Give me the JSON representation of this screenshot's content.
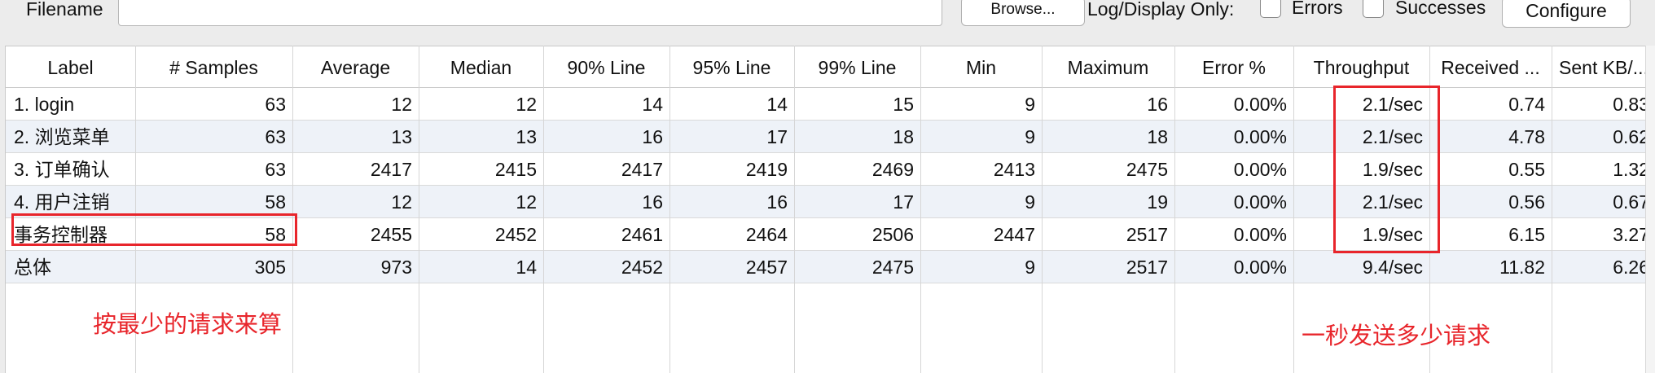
{
  "toolbar": {
    "filename_label": "Filename",
    "filename_value": "",
    "browse_label": "Browse...",
    "log_display_label": "Log/Display Only:",
    "errors_label": "Errors",
    "successes_label": "Successes",
    "configure_label": "Configure"
  },
  "table": {
    "columns": [
      "Label",
      "# Samples",
      "Average",
      "Median",
      "90% Line",
      "95% Line",
      "99% Line",
      "Min",
      "Maximum",
      "Error %",
      "Throughput",
      "Received ...",
      "Sent KB/..."
    ],
    "rows": [
      [
        "1. login",
        "63",
        "12",
        "12",
        "14",
        "14",
        "15",
        "9",
        "16",
        "0.00%",
        "2.1/sec",
        "0.74",
        "0.83"
      ],
      [
        "2. 浏览菜单",
        "63",
        "13",
        "13",
        "16",
        "17",
        "18",
        "9",
        "18",
        "0.00%",
        "2.1/sec",
        "4.78",
        "0.62"
      ],
      [
        "3. 订单确认",
        "63",
        "2417",
        "2415",
        "2417",
        "2419",
        "2469",
        "2413",
        "2475",
        "0.00%",
        "1.9/sec",
        "0.55",
        "1.32"
      ],
      [
        "4. 用户注销",
        "58",
        "12",
        "12",
        "16",
        "16",
        "17",
        "9",
        "19",
        "0.00%",
        "2.1/sec",
        "0.56",
        "0.67"
      ],
      [
        "事务控制器",
        "58",
        "2455",
        "2452",
        "2461",
        "2464",
        "2506",
        "2447",
        "2517",
        "0.00%",
        "1.9/sec",
        "6.15",
        "3.27"
      ],
      [
        "总体",
        "305",
        "973",
        "14",
        "2452",
        "2457",
        "2475",
        "9",
        "2517",
        "0.00%",
        "9.4/sec",
        "11.82",
        "6.26"
      ]
    ]
  },
  "annotations": {
    "left_note": "按最少的请求来算",
    "right_note": "一秒发送多少请求"
  },
  "colors": {
    "annotation_red": "#e8252b",
    "alt_row": "#eef2f8"
  }
}
